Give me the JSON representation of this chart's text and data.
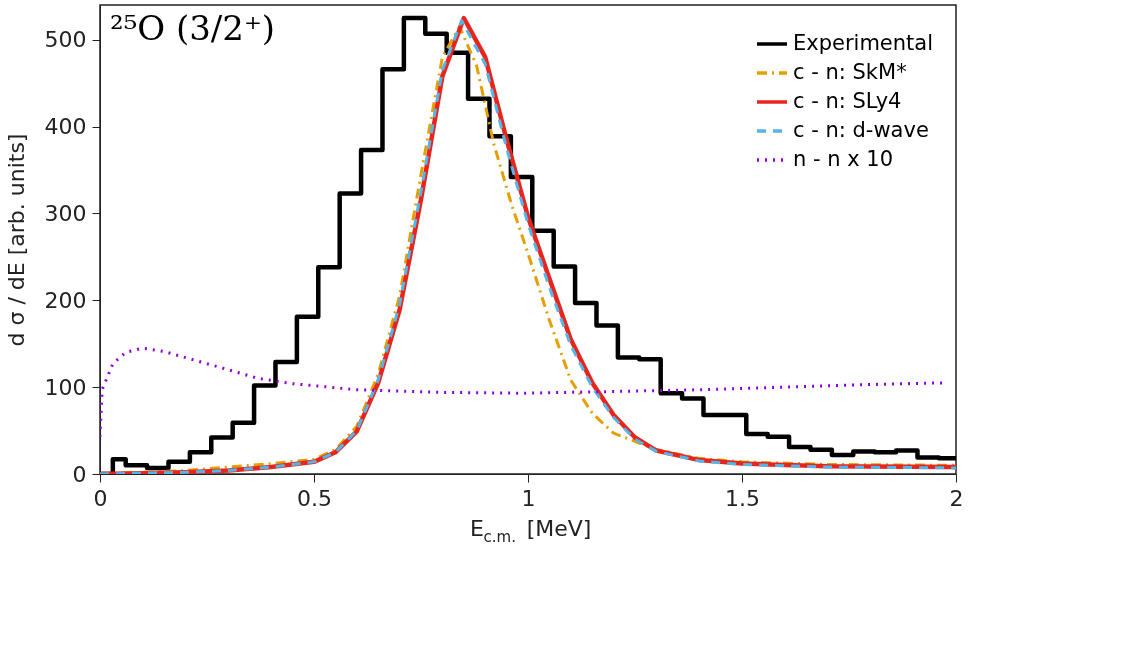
{
  "chart_data": {
    "type": "line",
    "xlabel": "E$_{c.m.}$ [MeV]",
    "ylabel": "d σ / dE [arb. units]",
    "annotations": [
      "²⁵O (3/2⁺)"
    ],
    "xlim": [
      0,
      2
    ],
    "xticks": [
      0,
      0.5,
      1,
      1.5,
      2
    ],
    "ylim": [
      0,
      540
    ],
    "yticks": [
      0,
      100,
      200,
      300,
      400,
      500
    ],
    "grid": false,
    "legend": "top right",
    "series": [
      {
        "name": "Experimental",
        "type": "step",
        "color": "#000000",
        "line_style": "solid",
        "x": [
          0,
          0.03,
          0.06,
          0.11,
          0.16,
          0.21,
          0.26,
          0.31,
          0.36,
          0.41,
          0.46,
          0.51,
          0.56,
          0.61,
          0.66,
          0.71,
          0.76,
          0.81,
          0.86,
          0.91,
          0.96,
          1.01,
          1.06,
          1.11,
          1.16,
          1.21,
          1.26,
          1.31,
          1.36,
          1.41,
          1.46,
          1.51,
          1.56,
          1.61,
          1.66,
          1.71,
          1.76,
          1.81,
          1.86,
          1.91,
          1.96,
          2.0
        ],
        "values": [
          0,
          17,
          10,
          7,
          14,
          25,
          42,
          59,
          102,
          129,
          181,
          238,
          323,
          373,
          466,
          525,
          507,
          485,
          432,
          389,
          342,
          280,
          239,
          197,
          171,
          134,
          132,
          93,
          87,
          68,
          68,
          46,
          43,
          31,
          28,
          22,
          26,
          25,
          27,
          19,
          18,
          18
        ]
      },
      {
        "name": "c - n: SkM*",
        "type": "line",
        "color": "#e69f00",
        "line_style": "dashdot",
        "x": [
          0,
          0.1,
          0.2,
          0.3,
          0.4,
          0.5,
          0.55,
          0.6,
          0.65,
          0.7,
          0.75,
          0.8,
          0.84,
          0.88,
          0.92,
          0.963,
          1.0,
          1.05,
          1.1,
          1.15,
          1.2,
          1.3,
          1.4,
          1.5,
          1.7,
          2.0
        ],
        "values": [
          0,
          2,
          4,
          8,
          12,
          17,
          28,
          55,
          115,
          205,
          345,
          480,
          515,
          470,
          380,
          308,
          254,
          177,
          108,
          70,
          47,
          28,
          18,
          14,
          11,
          10
        ]
      },
      {
        "name": "c - n: SLy4",
        "type": "line",
        "color": "#e8251c",
        "line_style": "solid",
        "x": [
          0,
          0.1,
          0.2,
          0.3,
          0.4,
          0.5,
          0.55,
          0.6,
          0.65,
          0.7,
          0.75,
          0.8,
          0.85,
          0.9,
          0.95,
          1.0,
          1.05,
          1.1,
          1.15,
          1.2,
          1.25,
          1.3,
          1.4,
          1.5,
          1.7,
          2.0
        ],
        "values": [
          0,
          1,
          2,
          4,
          8,
          14,
          25,
          49,
          105,
          189,
          316,
          458,
          525,
          480,
          385,
          296,
          225,
          155,
          105,
          68,
          42,
          27,
          16,
          12,
          9,
          8
        ]
      },
      {
        "name": "c - n: d-wave",
        "type": "line",
        "color": "#56b4e9",
        "line_style": "dashed",
        "x": [
          0,
          0.1,
          0.2,
          0.3,
          0.4,
          0.5,
          0.55,
          0.6,
          0.65,
          0.7,
          0.75,
          0.8,
          0.845,
          0.9,
          0.95,
          1.0,
          1.05,
          1.1,
          1.15,
          1.2,
          1.25,
          1.3,
          1.4,
          1.5,
          1.7,
          2.0
        ],
        "values": [
          0,
          1,
          2,
          4,
          8,
          14,
          25,
          50,
          108,
          195,
          325,
          465,
          522,
          472,
          375,
          288,
          215,
          148,
          100,
          65,
          40,
          26,
          15,
          11,
          8,
          7
        ]
      },
      {
        "name": "n - n x 10",
        "type": "line",
        "color": "#9400d3",
        "line_style": "dotted",
        "x": [
          0,
          0.005,
          0.03,
          0.06,
          0.1,
          0.15,
          0.2,
          0.3,
          0.37,
          0.45,
          0.6,
          0.8,
          0.99,
          1.2,
          1.4,
          1.6,
          1.8,
          1.975
        ],
        "values": [
          43,
          97,
          127,
          140,
          145,
          141,
          134,
          120,
          110,
          104,
          97,
          94,
          93,
          95,
          97,
          100,
          103,
          105
        ]
      }
    ]
  }
}
